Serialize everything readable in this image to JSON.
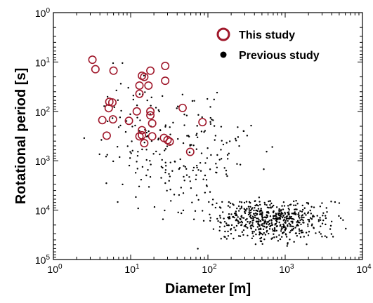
{
  "chart_data": {
    "type": "scatter",
    "xlabel": "Diameter [m]",
    "ylabel": "Rotational period [s]",
    "xscale": "log",
    "yscale": "log",
    "xlim": [
      1,
      10000
    ],
    "ylim": [
      100000,
      1
    ],
    "y_inverted": true,
    "x_ticks": [
      {
        "base": "10",
        "exp": "0"
      },
      {
        "base": "10",
        "exp": "1"
      },
      {
        "base": "10",
        "exp": "2"
      },
      {
        "base": "10",
        "exp": "3"
      },
      {
        "base": "10",
        "exp": "4"
      }
    ],
    "y_ticks": [
      {
        "base": "10",
        "exp": "0"
      },
      {
        "base": "10",
        "exp": "1"
      },
      {
        "base": "10",
        "exp": "2"
      },
      {
        "base": "10",
        "exp": "3"
      },
      {
        "base": "10",
        "exp": "4"
      },
      {
        "base": "10",
        "exp": "5"
      }
    ],
    "legend_position": "top-right",
    "grid": false,
    "series": [
      {
        "name": "This study",
        "marker": "open-circle",
        "color": "#a0182b",
        "points": [
          [
            3.2,
            9
          ],
          [
            3.5,
            14
          ],
          [
            6.0,
            15
          ],
          [
            14,
            19
          ],
          [
            15,
            20
          ],
          [
            18,
            15
          ],
          [
            28,
            12
          ],
          [
            13,
            30
          ],
          [
            17,
            30
          ],
          [
            28,
            24
          ],
          [
            13,
            44
          ],
          [
            5.3,
            64
          ],
          [
            5.8,
            66
          ],
          [
            5.2,
            86
          ],
          [
            12,
            100
          ],
          [
            18,
            100
          ],
          [
            47,
            85
          ],
          [
            4.3,
            150
          ],
          [
            5.9,
            145
          ],
          [
            9.5,
            155
          ],
          [
            18,
            120
          ],
          [
            19,
            175
          ],
          [
            85,
            165
          ],
          [
            14,
            240
          ],
          [
            13,
            320
          ],
          [
            14,
            305
          ],
          [
            19,
            320
          ],
          [
            27,
            345
          ],
          [
            4.9,
            310
          ],
          [
            30,
            380
          ],
          [
            32,
            410
          ],
          [
            15,
            440
          ],
          [
            59,
            660
          ]
        ]
      },
      {
        "name": "Previous study",
        "marker": "filled-dot",
        "color": "#000000",
        "seed": 7,
        "clusters": [
          {
            "n": 560,
            "logx_mean": 2.82,
            "logx_sd": 0.38,
            "logy_mean": 4.17,
            "logy_sd": 0.22,
            "logx_min": 2.0,
            "logx_max": 3.8,
            "logy_min": 3.8,
            "logy_max": 5.0
          },
          {
            "n": 180,
            "logx_mean": 1.85,
            "logx_sd": 0.4,
            "logy_mean": 2.95,
            "logy_sd": 0.6,
            "logx_min": 0.9,
            "logx_max": 2.9,
            "logy_min": 1.3,
            "logy_max": 4.8
          },
          {
            "n": 70,
            "logx_mean": 1.05,
            "logx_sd": 0.3,
            "logy_mean": 2.3,
            "logy_sd": 0.6,
            "logx_min": 0.3,
            "logx_max": 2.0,
            "logy_min": 0.6,
            "logy_max": 4.0
          }
        ]
      }
    ]
  }
}
